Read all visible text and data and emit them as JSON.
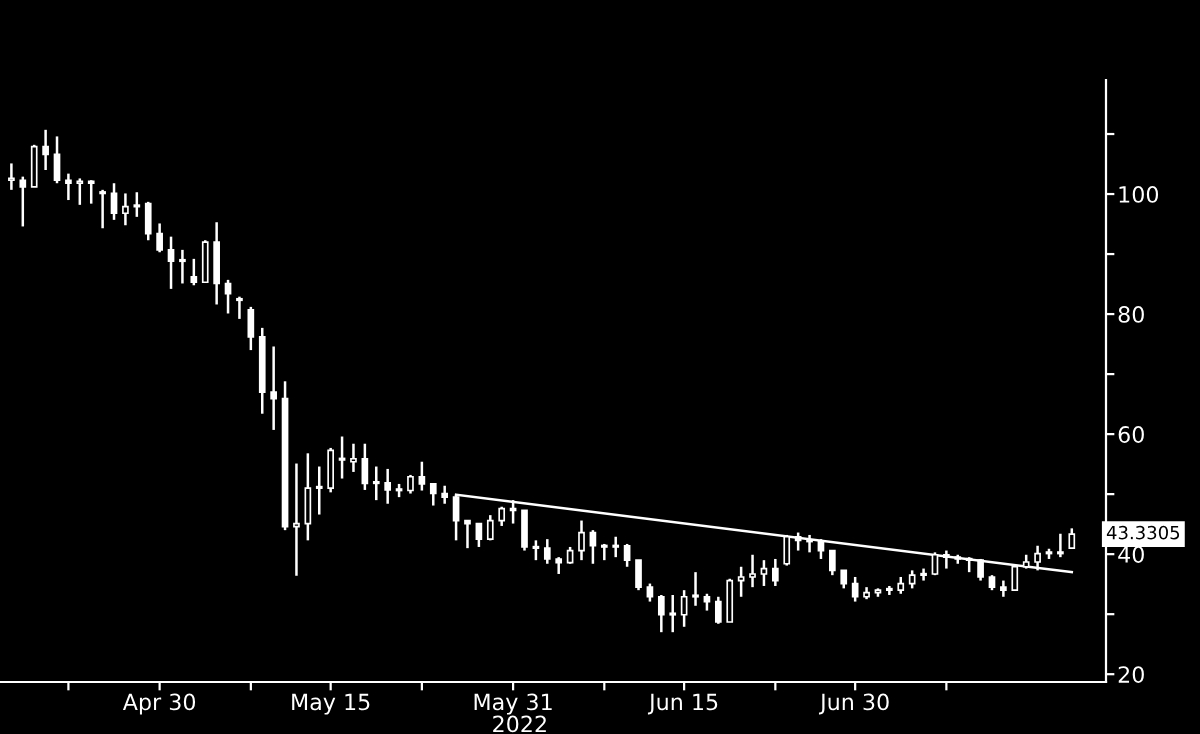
{
  "chart_data": {
    "type": "candlestick",
    "xlabel": "2022",
    "xlim": [
      "2022-04-16",
      "2022-07-22"
    ],
    "xticks": [
      {
        "value": "2022-04-22",
        "label": null
      },
      {
        "value": "2022-04-30",
        "label": "Apr 30"
      },
      {
        "value": "2022-05-08",
        "label": null
      },
      {
        "value": "2022-05-15",
        "label": "May 15"
      },
      {
        "value": "2022-05-23",
        "label": null
      },
      {
        "value": "2022-05-31",
        "label": "May 31"
      },
      {
        "value": "2022-06-08",
        "label": null
      },
      {
        "value": "2022-06-15",
        "label": "Jun 15"
      },
      {
        "value": "2022-06-23",
        "label": null
      },
      {
        "value": "2022-06-30",
        "label": "Jun 30"
      },
      {
        "value": "2022-07-08",
        "label": null
      }
    ],
    "ylim": [
      18.7,
      119
    ],
    "yticks": [
      20,
      {
        "value": 30,
        "label": null
      },
      40,
      {
        "value": 50,
        "label": null
      },
      60,
      {
        "value": 70,
        "label": null
      },
      80,
      {
        "value": 90,
        "label": null
      },
      100,
      {
        "value": 110,
        "label": null
      }
    ],
    "grid": false,
    "legend": false,
    "annotations": [
      {
        "text": "43.3305",
        "x": "2022-07-19",
        "y": 43.3305
      }
    ],
    "series": [
      {
        "type": "candlestick",
        "color": "#ffffff",
        "x": [
          "2022-04-17",
          "2022-04-18",
          "2022-04-19",
          "2022-04-20",
          "2022-04-21",
          "2022-04-22",
          "2022-04-23",
          "2022-04-24",
          "2022-04-25",
          "2022-04-26",
          "2022-04-27",
          "2022-04-28",
          "2022-04-29",
          "2022-04-30",
          "2022-05-01",
          "2022-05-02",
          "2022-05-03",
          "2022-05-04",
          "2022-05-05",
          "2022-05-06",
          "2022-05-07",
          "2022-05-08",
          "2022-05-09",
          "2022-05-10",
          "2022-05-11",
          "2022-05-12",
          "2022-05-13",
          "2022-05-14",
          "2022-05-15",
          "2022-05-16",
          "2022-05-17",
          "2022-05-18",
          "2022-05-19",
          "2022-05-20",
          "2022-05-21",
          "2022-05-22",
          "2022-05-23",
          "2022-05-24",
          "2022-05-25",
          "2022-05-26",
          "2022-05-27",
          "2022-05-28",
          "2022-05-29",
          "2022-05-30",
          "2022-05-31",
          "2022-06-01",
          "2022-06-02",
          "2022-06-03",
          "2022-06-04",
          "2022-06-05",
          "2022-06-06",
          "2022-06-07",
          "2022-06-08",
          "2022-06-09",
          "2022-06-10",
          "2022-06-11",
          "2022-06-12",
          "2022-06-13",
          "2022-06-14",
          "2022-06-15",
          "2022-06-16",
          "2022-06-17",
          "2022-06-18",
          "2022-06-19",
          "2022-06-20",
          "2022-06-21",
          "2022-06-22",
          "2022-06-23",
          "2022-06-24",
          "2022-06-25",
          "2022-06-26",
          "2022-06-27",
          "2022-06-28",
          "2022-06-29",
          "2022-06-30",
          "2022-07-01",
          "2022-07-02",
          "2022-07-03",
          "2022-07-04",
          "2022-07-05",
          "2022-07-06",
          "2022-07-07",
          "2022-07-08",
          "2022-07-09",
          "2022-07-10",
          "2022-07-11",
          "2022-07-12",
          "2022-07-13",
          "2022-07-14",
          "2022-07-15",
          "2022-07-16",
          "2022-07-17",
          "2022-07-18",
          "2022-07-19"
        ],
        "ohlc": [
          [
            102.3,
            105.1,
            100.7,
            102.6
          ],
          [
            102.3,
            102.9,
            94.6,
            101.2
          ],
          [
            101.2,
            108.2,
            101.2,
            107.9
          ],
          [
            107.9,
            110.7,
            104.0,
            106.6
          ],
          [
            106.6,
            109.6,
            101.8,
            102.3
          ],
          [
            102.3,
            103.4,
            99.0,
            101.8
          ],
          [
            101.8,
            102.6,
            98.2,
            102.1
          ],
          [
            102.1,
            102.3,
            98.4,
            101.8
          ],
          [
            100.1,
            100.7,
            94.3,
            100.1
          ],
          [
            100.1,
            101.8,
            95.7,
            96.8
          ],
          [
            96.8,
            100.1,
            94.8,
            97.9
          ],
          [
            97.9,
            100.3,
            96.2,
            98.1
          ],
          [
            98.4,
            98.7,
            92.3,
            93.4
          ],
          [
            93.4,
            95.1,
            90.3,
            90.7
          ],
          [
            90.7,
            92.9,
            84.2,
            88.8
          ],
          [
            88.8,
            90.7,
            85.1,
            88.8
          ],
          [
            86.2,
            89.2,
            84.8,
            85.3
          ],
          [
            85.3,
            92.3,
            85.3,
            92.0
          ],
          [
            92.0,
            95.3,
            81.6,
            85.1
          ],
          [
            85.1,
            85.7,
            80.1,
            83.4
          ],
          [
            82.3,
            82.9,
            79.2,
            82.3
          ],
          [
            80.7,
            81.2,
            74.0,
            76.2
          ],
          [
            76.2,
            77.7,
            63.4,
            67.0
          ],
          [
            67.0,
            74.6,
            60.7,
            65.9
          ],
          [
            65.9,
            68.8,
            44.0,
            44.6
          ],
          [
            44.6,
            55.1,
            36.4,
            45.1
          ],
          [
            45.1,
            56.8,
            42.3,
            51.0
          ],
          [
            51.0,
            54.6,
            46.6,
            51.0
          ],
          [
            51.0,
            57.7,
            50.3,
            57.3
          ],
          [
            55.7,
            59.6,
            52.6,
            55.7
          ],
          [
            55.4,
            58.4,
            53.7,
            55.9
          ],
          [
            55.9,
            58.4,
            50.7,
            51.8
          ],
          [
            51.8,
            54.6,
            49.0,
            51.9
          ],
          [
            51.9,
            54.2,
            48.4,
            50.7
          ],
          [
            50.7,
            51.7,
            49.5,
            50.6
          ],
          [
            50.6,
            53.2,
            50.1,
            52.9
          ],
          [
            52.9,
            55.4,
            50.6,
            51.7
          ],
          [
            51.7,
            51.7,
            48.1,
            50.1
          ],
          [
            50.1,
            51.4,
            48.4,
            49.5
          ],
          [
            49.5,
            49.9,
            42.3,
            45.6
          ],
          [
            45.6,
            45.6,
            41.0,
            45.1
          ],
          [
            45.1,
            45.1,
            41.2,
            42.5
          ],
          [
            42.5,
            46.5,
            42.3,
            45.6
          ],
          [
            45.6,
            47.9,
            44.7,
            47.6
          ],
          [
            47.6,
            49.0,
            45.1,
            47.3
          ],
          [
            47.3,
            47.3,
            40.6,
            41.2
          ],
          [
            41.2,
            42.3,
            39.0,
            41.0
          ],
          [
            41.0,
            42.5,
            38.4,
            39.2
          ],
          [
            39.2,
            39.5,
            36.7,
            38.6
          ],
          [
            38.6,
            41.2,
            38.4,
            40.6
          ],
          [
            40.6,
            45.6,
            39.0,
            43.6
          ],
          [
            43.6,
            44.0,
            38.4,
            41.4
          ],
          [
            41.4,
            41.7,
            39.0,
            41.2
          ],
          [
            41.2,
            42.9,
            39.5,
            41.4
          ],
          [
            41.4,
            41.7,
            37.9,
            39.0
          ],
          [
            39.0,
            39.0,
            34.0,
            34.5
          ],
          [
            34.5,
            35.1,
            32.1,
            32.9
          ],
          [
            32.9,
            33.2,
            27.0,
            29.9
          ],
          [
            29.9,
            33.2,
            27.0,
            29.9
          ],
          [
            29.9,
            34.0,
            27.9,
            32.9
          ],
          [
            32.9,
            37.0,
            31.4,
            32.9
          ],
          [
            32.9,
            33.4,
            30.6,
            32.1
          ],
          [
            32.1,
            32.9,
            28.4,
            28.7
          ],
          [
            28.7,
            35.9,
            28.7,
            35.6
          ],
          [
            35.6,
            37.9,
            32.9,
            36.2
          ],
          [
            36.2,
            39.9,
            34.5,
            36.7
          ],
          [
            36.7,
            39.0,
            34.7,
            37.6
          ],
          [
            37.6,
            39.2,
            34.7,
            35.6
          ],
          [
            38.4,
            43.2,
            38.1,
            42.9
          ],
          [
            42.9,
            43.6,
            40.6,
            42.3
          ],
          [
            42.3,
            43.2,
            40.3,
            42.1
          ],
          [
            42.1,
            42.5,
            39.2,
            40.6
          ],
          [
            40.6,
            40.6,
            36.5,
            37.3
          ],
          [
            37.3,
            37.3,
            34.3,
            35.1
          ],
          [
            35.1,
            36.2,
            32.1,
            32.9
          ],
          [
            32.9,
            34.5,
            32.5,
            33.6
          ],
          [
            33.6,
            34.3,
            32.9,
            34.0
          ],
          [
            34.0,
            34.7,
            33.2,
            34.0
          ],
          [
            34.0,
            36.2,
            33.4,
            35.1
          ],
          [
            35.1,
            37.3,
            34.3,
            36.5
          ],
          [
            36.5,
            37.6,
            35.6,
            36.7
          ],
          [
            36.7,
            40.3,
            36.5,
            39.9
          ],
          [
            39.9,
            40.6,
            37.6,
            39.5
          ],
          [
            39.5,
            39.9,
            38.4,
            39.2
          ],
          [
            39.2,
            39.5,
            37.0,
            39.0
          ],
          [
            39.0,
            39.2,
            35.6,
            36.2
          ],
          [
            36.2,
            36.5,
            34.0,
            34.5
          ],
          [
            34.5,
            35.6,
            32.9,
            34.0
          ],
          [
            34.0,
            38.1,
            34.0,
            37.9
          ],
          [
            37.9,
            39.9,
            37.6,
            38.7
          ],
          [
            38.7,
            41.4,
            37.3,
            40.1
          ],
          [
            40.1,
            40.9,
            39.2,
            40.1
          ],
          [
            40.1,
            43.4,
            39.5,
            40.1
          ],
          [
            41.0,
            44.3,
            41.0,
            43.3305
          ]
        ]
      },
      {
        "type": "line",
        "color": "#ffffff",
        "x": [
          "2022-05-26",
          "2022-07-19"
        ],
        "values": [
          49.9,
          37.0
        ]
      }
    ]
  }
}
